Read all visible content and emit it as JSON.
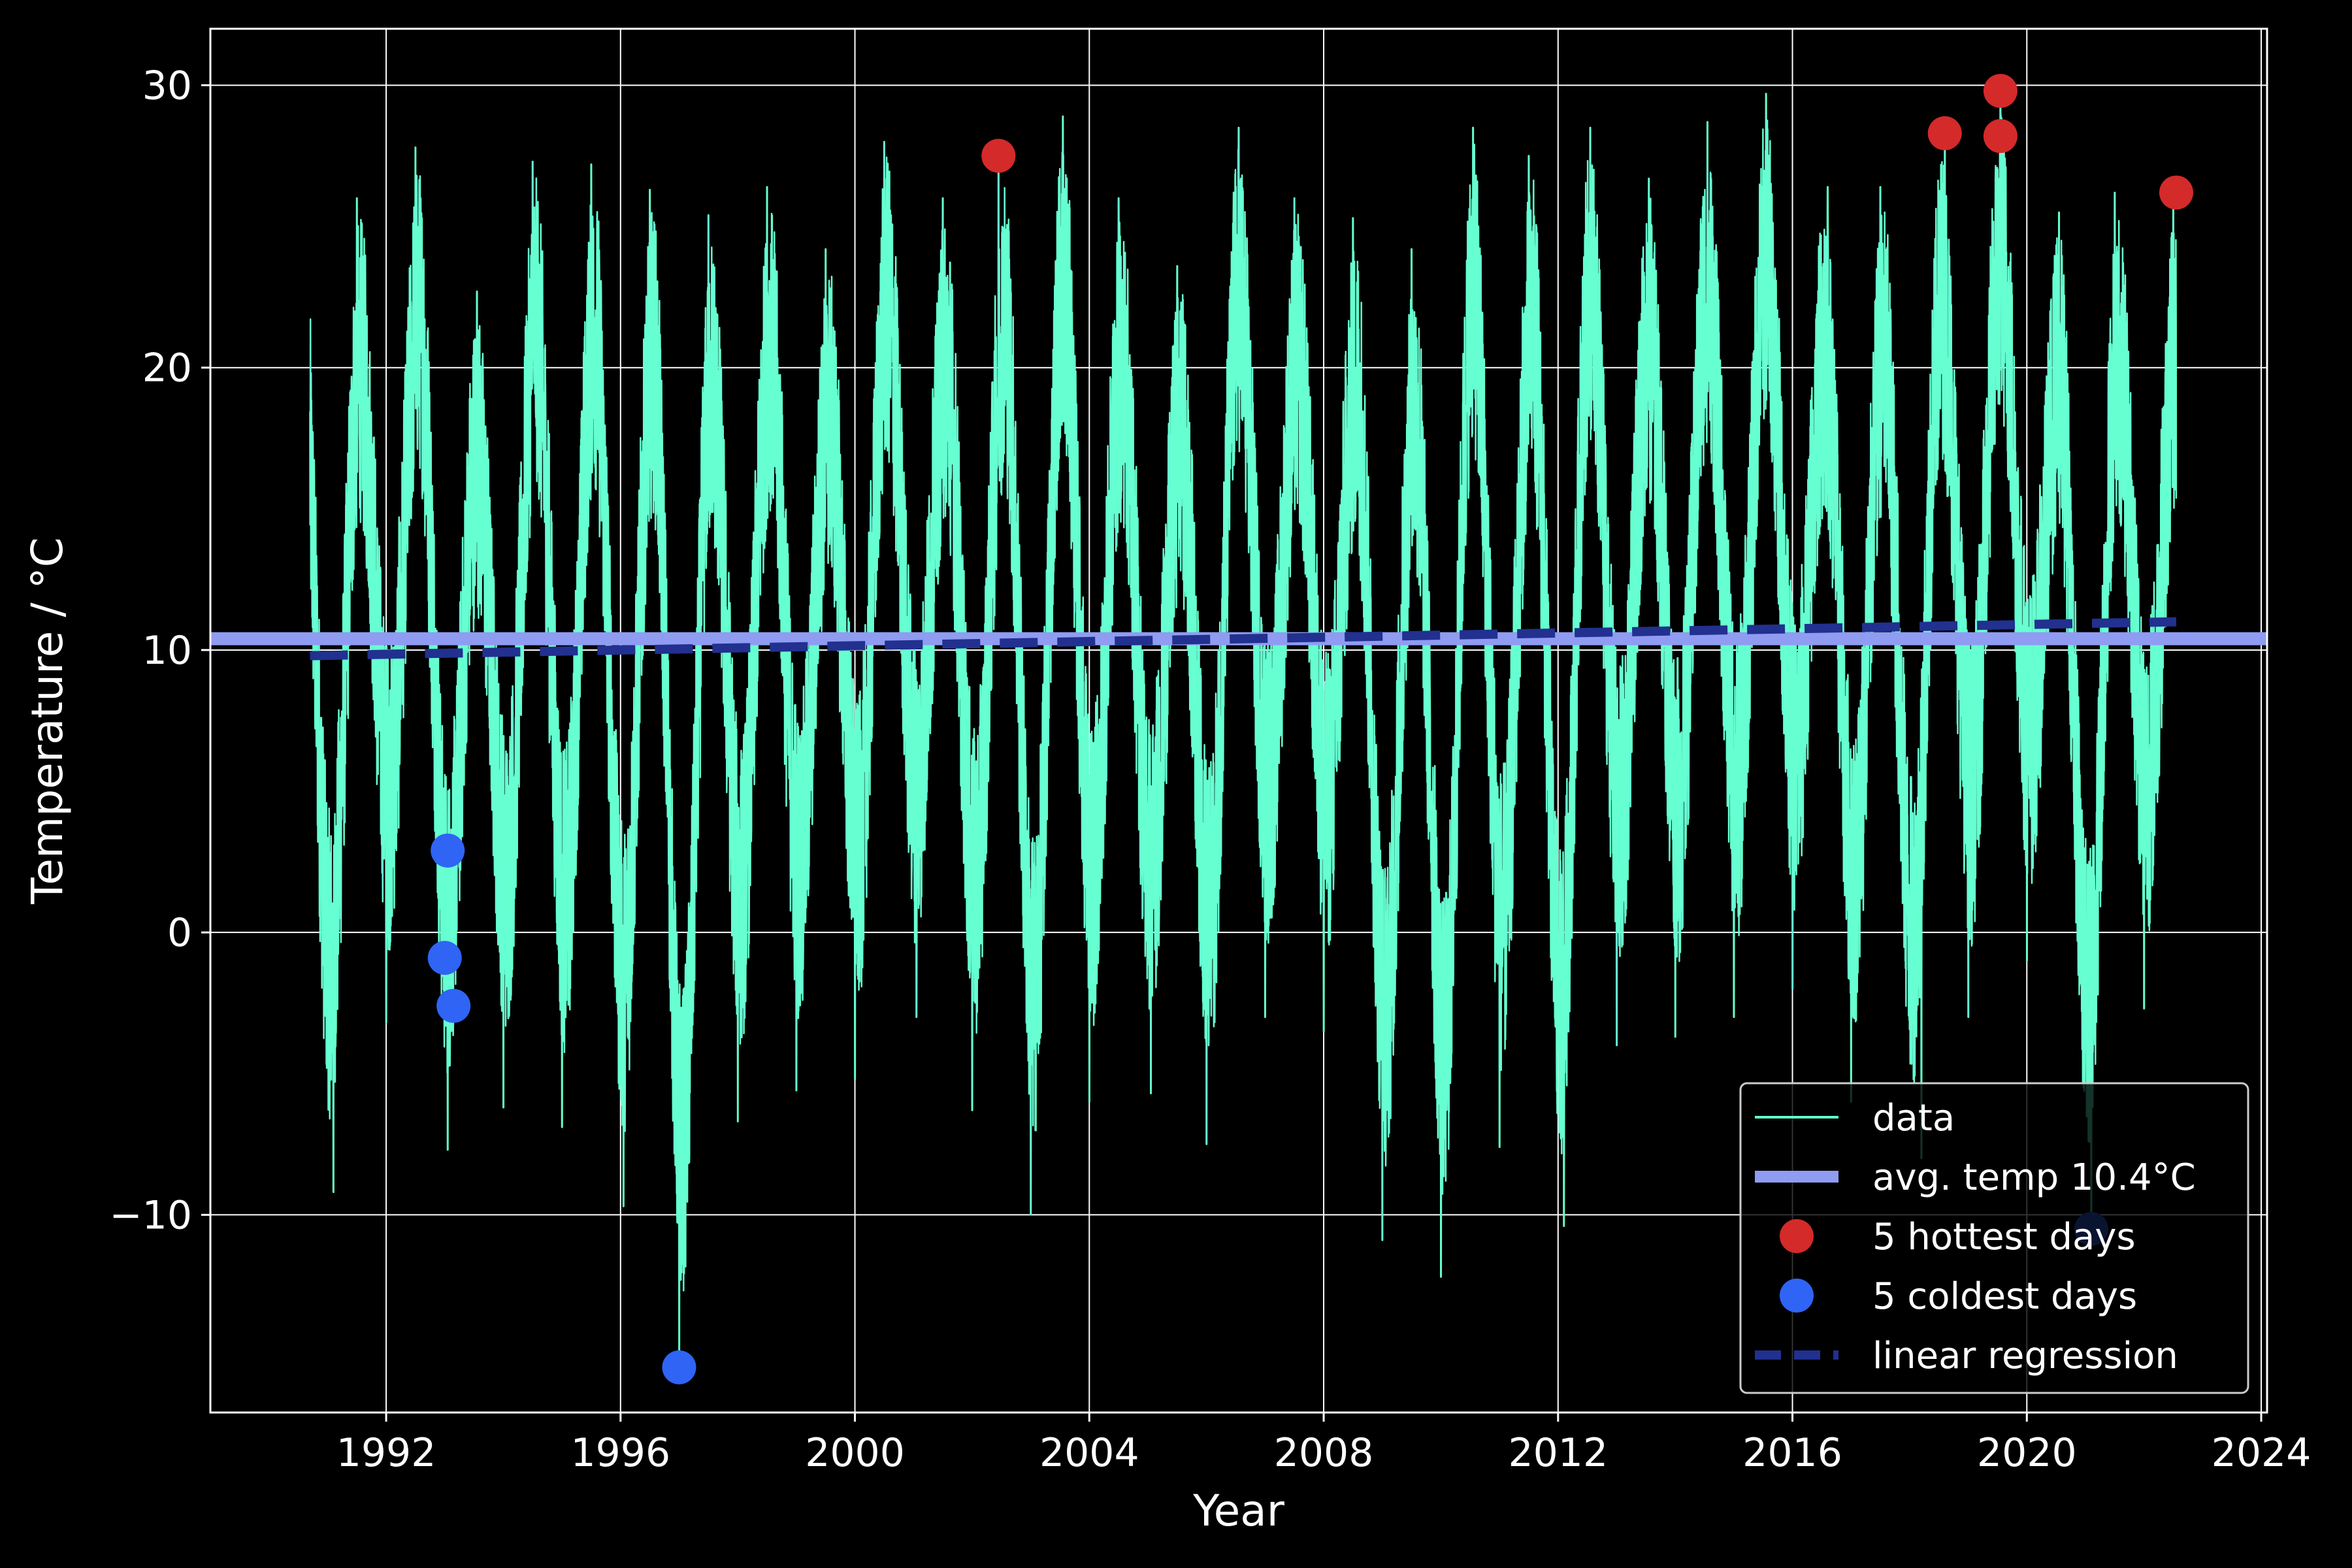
{
  "chart_data": {
    "type": "line",
    "title": "",
    "xlabel": "Year",
    "ylabel": "Temperature / °C",
    "xlim": [
      1989,
      2024.1
    ],
    "ylim": [
      -17,
      32
    ],
    "grid": true,
    "legend_position": "bottom-right",
    "x_ticks": [
      1992,
      1996,
      2000,
      2004,
      2008,
      2012,
      2016,
      2020,
      2024
    ],
    "x_tick_labels": [
      "1992",
      "1996",
      "2000",
      "2004",
      "2008",
      "2012",
      "2016",
      "2020",
      "2024"
    ],
    "y_ticks": [
      -10,
      0,
      10,
      20,
      30
    ],
    "y_tick_labels": [
      "−10",
      "0",
      "10",
      "20",
      "30"
    ],
    "colors": {
      "background": "#000000",
      "data": "#66ffd1",
      "average": "#8f9cf2",
      "hottest": "#d42a2a",
      "coldest": "#2f64f5",
      "regression": "#22308f",
      "grid": "#ffffff"
    },
    "data_series": {
      "name": "data",
      "x_start": 1990.7,
      "x_end": 2022.55,
      "seasonal_mean": 10.4,
      "seasonal_amplitude": 10,
      "summer_peaks": [
        [
          1990.6,
          27.4
        ],
        [
          1991.5,
          26.0
        ],
        [
          1992.5,
          27.8
        ],
        [
          1993.55,
          22.7
        ],
        [
          1994.5,
          27.3
        ],
        [
          1995.5,
          27.2
        ],
        [
          1996.5,
          26.3
        ],
        [
          1997.5,
          25.4
        ],
        [
          1998.5,
          26.4
        ],
        [
          1999.5,
          24.2
        ],
        [
          2000.5,
          28.0
        ],
        [
          2001.5,
          26.0
        ],
        [
          2002.45,
          27.5
        ],
        [
          2003.55,
          28.9
        ],
        [
          2004.5,
          26.0
        ],
        [
          2005.5,
          23.6
        ],
        [
          2006.55,
          28.5
        ],
        [
          2007.5,
          26.0
        ],
        [
          2008.5,
          25.3
        ],
        [
          2009.5,
          24.2
        ],
        [
          2010.55,
          28.5
        ],
        [
          2011.5,
          27.5
        ],
        [
          2012.55,
          28.5
        ],
        [
          2013.55,
          26.7
        ],
        [
          2014.55,
          28.7
        ],
        [
          2015.55,
          29.7
        ],
        [
          2016.6,
          26.4
        ],
        [
          2017.5,
          26.4
        ],
        [
          2018.6,
          28.3
        ],
        [
          2019.55,
          29.8
        ],
        [
          2020.55,
          25.5
        ],
        [
          2021.5,
          26.2
        ],
        [
          2022.5,
          26.2
        ]
      ],
      "winter_lows": [
        [
          1991.1,
          -9.2
        ],
        [
          1992.0,
          -3.2
        ],
        [
          1993.05,
          -7.7
        ],
        [
          1994.0,
          -6.2
        ],
        [
          1995.0,
          -6.9
        ],
        [
          1996.05,
          -9.7
        ],
        [
          1997.0,
          -15.4
        ],
        [
          1998.0,
          -6.7
        ],
        [
          1999.0,
          -5.6
        ],
        [
          2000.0,
          -5.2
        ],
        [
          2001.05,
          -3.0
        ],
        [
          2002.0,
          -6.3
        ],
        [
          2003.0,
          -10.0
        ],
        [
          2004.0,
          -6.0
        ],
        [
          2005.05,
          -5.7
        ],
        [
          2006.0,
          -7.5
        ],
        [
          2007.0,
          -3.0
        ],
        [
          2008.0,
          -3.5
        ],
        [
          2009.0,
          -10.9
        ],
        [
          2010.0,
          -12.2
        ],
        [
          2011.0,
          -7.6
        ],
        [
          2012.1,
          -10.4
        ],
        [
          2013.0,
          -4.0
        ],
        [
          2014.0,
          -3.7
        ],
        [
          2015.0,
          -3.0
        ],
        [
          2016.0,
          -2.0
        ],
        [
          2017.0,
          -6.0
        ],
        [
          2018.2,
          -8.0
        ],
        [
          2019.0,
          -3.0
        ],
        [
          2020.0,
          -1.0
        ],
        [
          2021.1,
          -10.5
        ],
        [
          2022.0,
          -2.7
        ]
      ]
    },
    "average": {
      "name": "avg. temp 10.4°C",
      "value": 10.4
    },
    "hottest_days": {
      "name": "5 hottest days",
      "points": [
        {
          "x": 2002.45,
          "y": 27.5
        },
        {
          "x": 2018.6,
          "y": 28.3
        },
        {
          "x": 2019.55,
          "y": 29.8
        },
        {
          "x": 2019.55,
          "y": 28.2
        },
        {
          "x": 2022.55,
          "y": 26.2
        }
      ]
    },
    "coldest_days": {
      "name": "5 coldest days",
      "points": [
        {
          "x": 1993.05,
          "y": 2.9
        },
        {
          "x": 1993.0,
          "y": -0.9
        },
        {
          "x": 1993.15,
          "y": -2.6
        },
        {
          "x": 1997.0,
          "y": -15.4
        },
        {
          "x": 2021.1,
          "y": -10.5
        }
      ]
    },
    "regression": {
      "name": "linear regression",
      "x": [
        1990.7,
        2022.55
      ],
      "y": [
        9.8,
        11.0
      ]
    },
    "legend": [
      "data",
      "avg. temp 10.4°C",
      "5 hottest days",
      "5 coldest days",
      "linear regression"
    ]
  }
}
